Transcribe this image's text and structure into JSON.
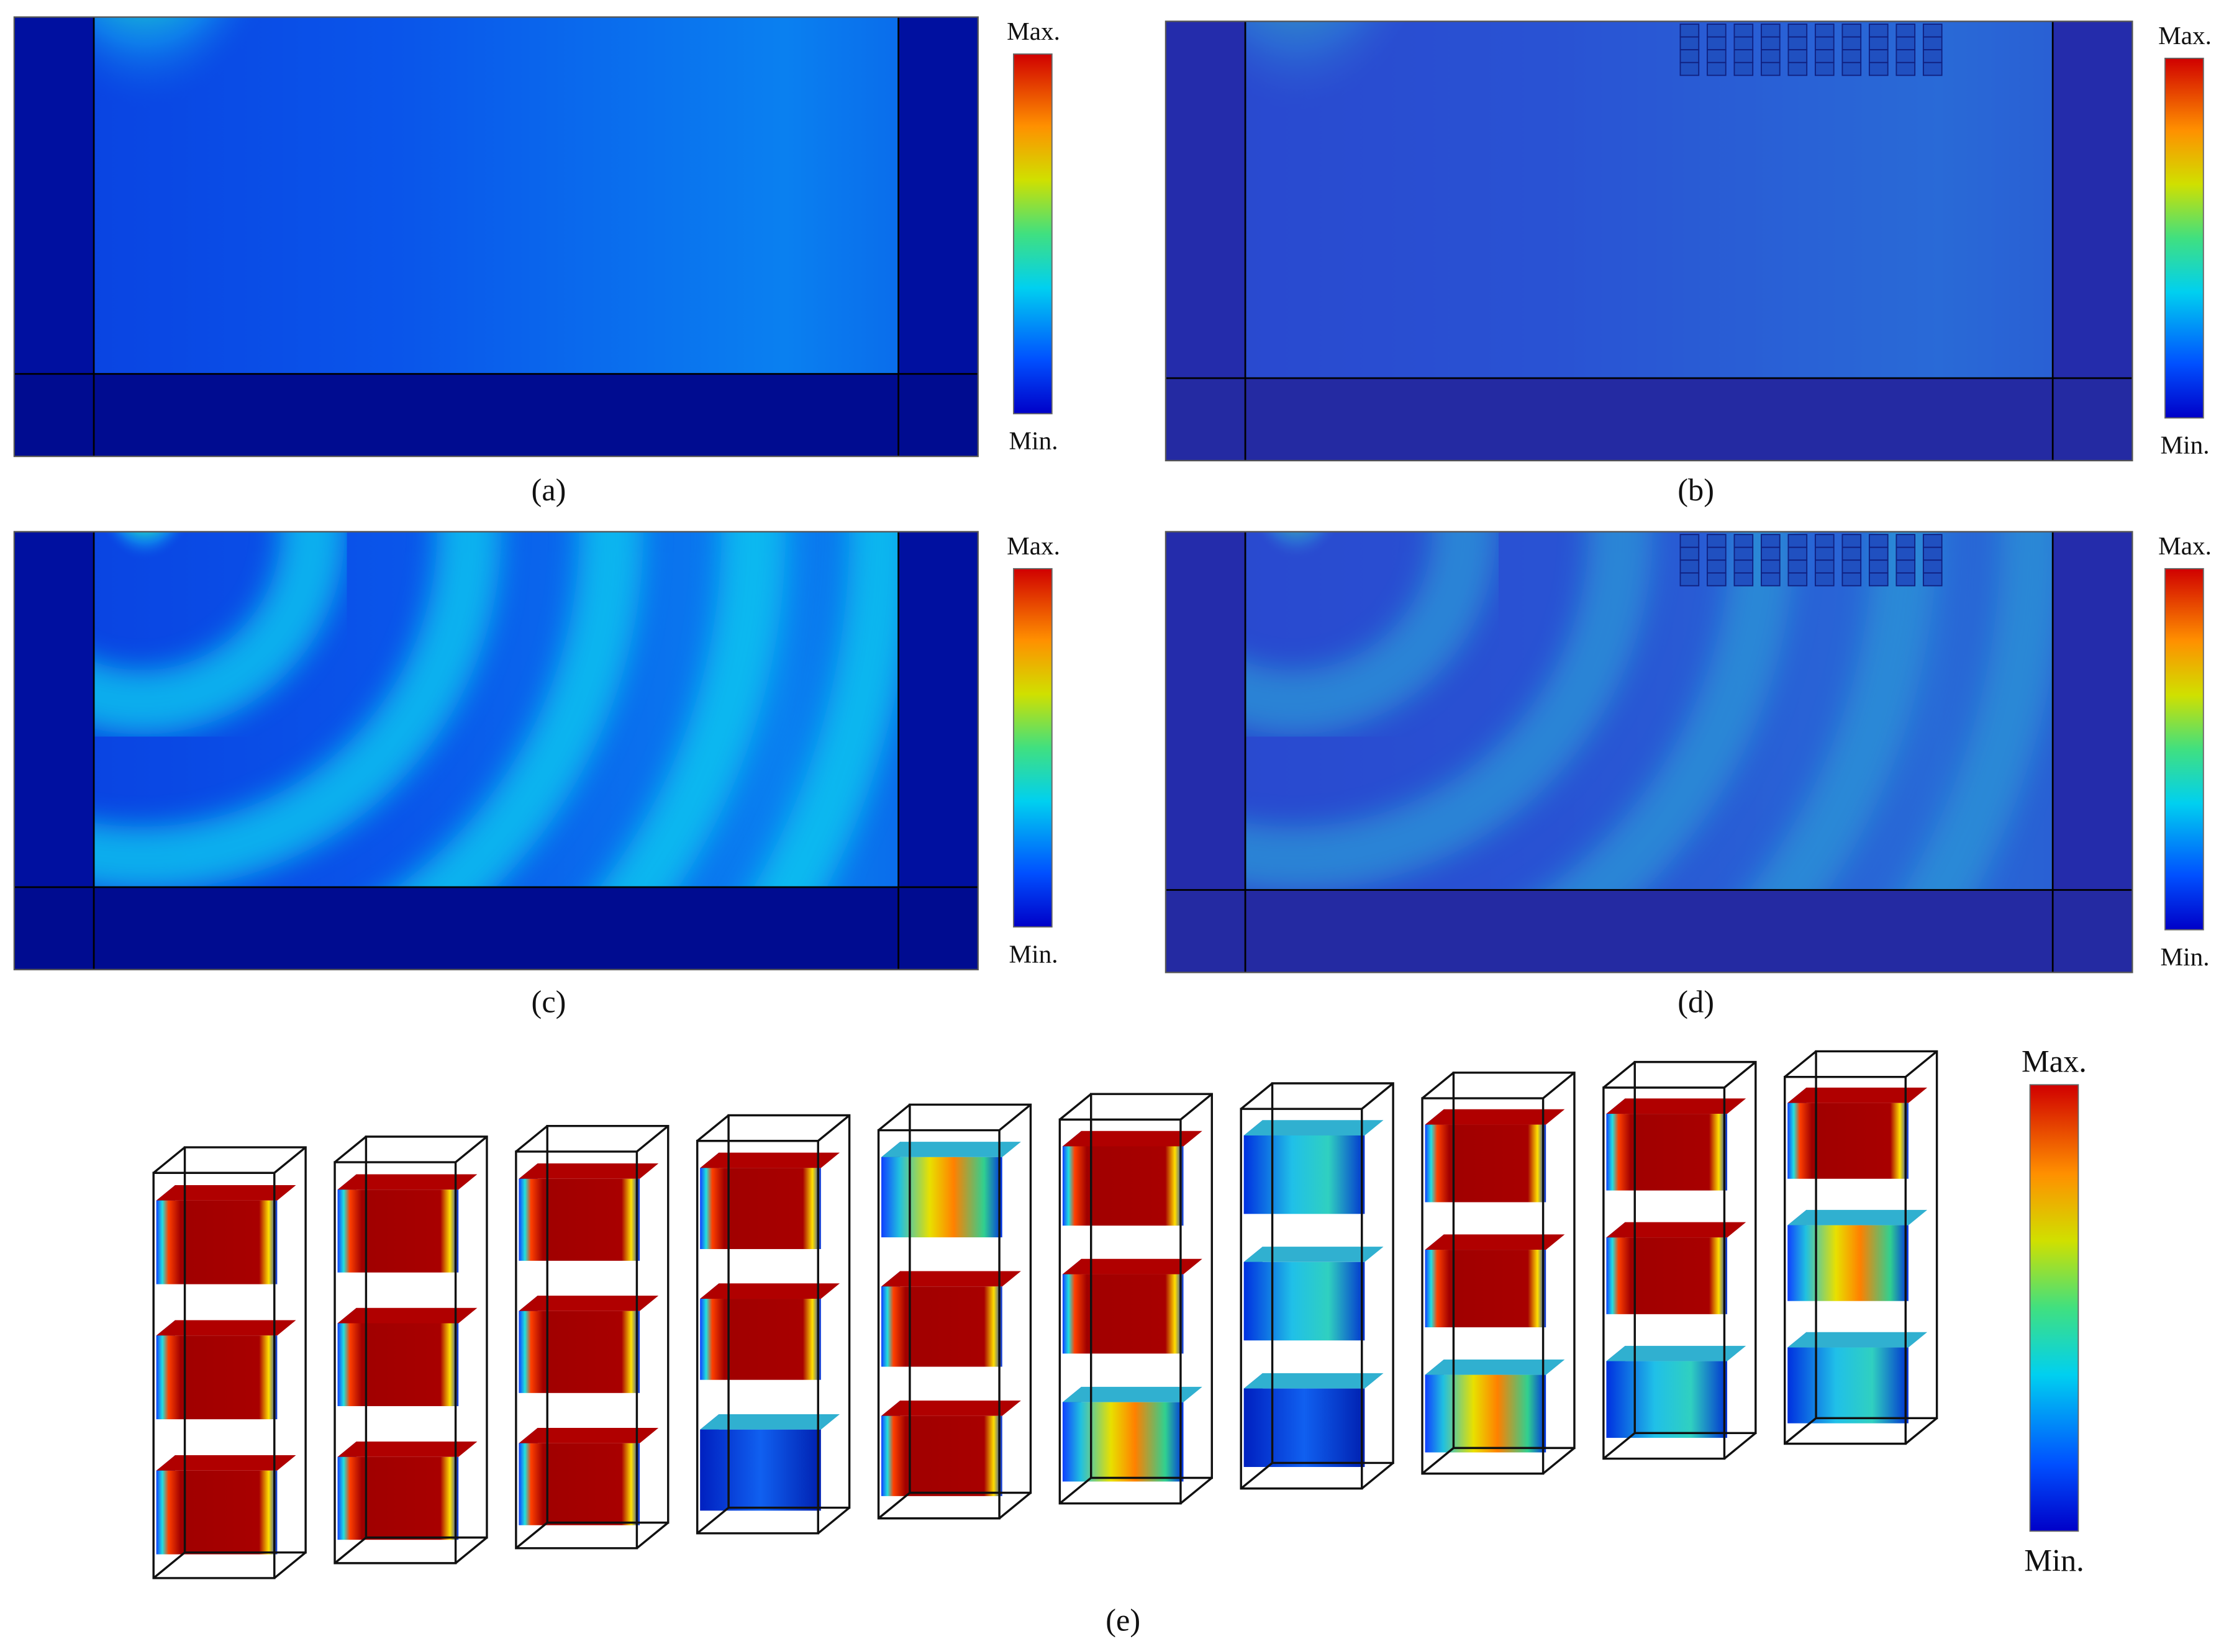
{
  "panels": [
    {
      "label": "(a)",
      "colorbar": {
        "max": "Max.",
        "min": "Min."
      }
    },
    {
      "label": "(b)",
      "colorbar": {
        "max": "Max.",
        "min": "Min."
      }
    },
    {
      "label": "(c)",
      "colorbar": {
        "max": "Max.",
        "min": "Min."
      }
    },
    {
      "label": "(d)",
      "colorbar": {
        "max": "Max.",
        "min": "Min."
      }
    },
    {
      "label": "(e)",
      "colorbar": {
        "max": "Max.",
        "min": "Min."
      }
    }
  ]
}
